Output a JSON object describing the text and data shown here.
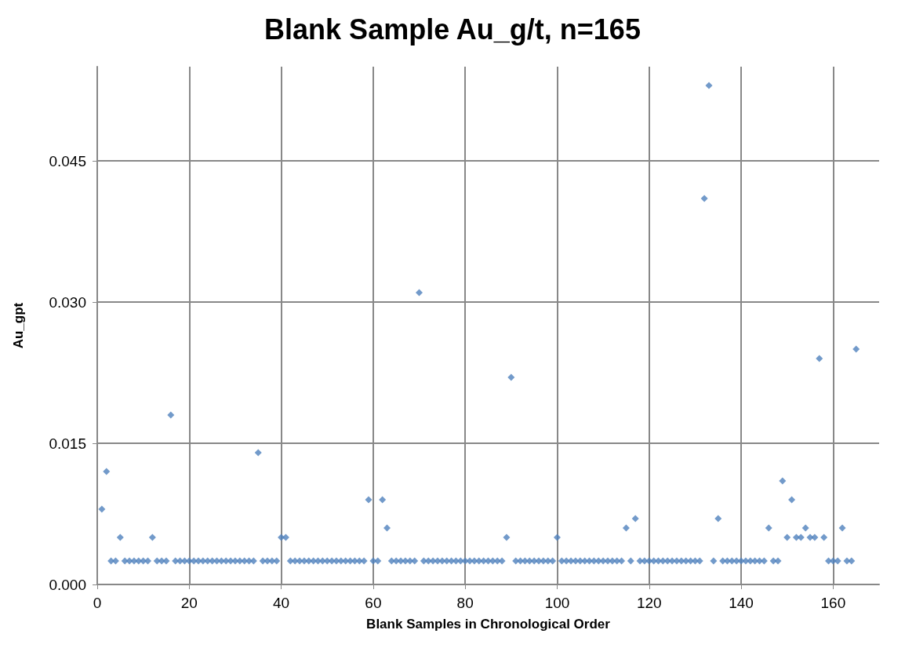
{
  "chart_data": {
    "type": "scatter",
    "title": "Blank Sample Au_g/t, n=165",
    "xlabel": "Blank Samples in Chronological Order",
    "ylabel": "Au_gpt",
    "x": [
      1,
      2,
      3,
      4,
      5,
      6,
      7,
      8,
      9,
      10,
      11,
      12,
      13,
      14,
      15,
      16,
      17,
      18,
      19,
      20,
      21,
      22,
      23,
      24,
      25,
      26,
      27,
      28,
      29,
      30,
      31,
      32,
      33,
      34,
      35,
      36,
      37,
      38,
      39,
      40,
      41,
      42,
      43,
      44,
      45,
      46,
      47,
      48,
      49,
      50,
      51,
      52,
      53,
      54,
      55,
      56,
      57,
      58,
      59,
      60,
      61,
      62,
      63,
      64,
      65,
      66,
      67,
      68,
      69,
      70,
      71,
      72,
      73,
      74,
      75,
      76,
      77,
      78,
      79,
      80,
      81,
      82,
      83,
      84,
      85,
      86,
      87,
      88,
      89,
      90,
      91,
      92,
      93,
      94,
      95,
      96,
      97,
      98,
      99,
      100,
      101,
      102,
      103,
      104,
      105,
      106,
      107,
      108,
      109,
      110,
      111,
      112,
      113,
      114,
      115,
      116,
      117,
      118,
      119,
      120,
      121,
      122,
      123,
      124,
      125,
      126,
      127,
      128,
      129,
      130,
      131,
      132,
      133,
      134,
      135,
      136,
      137,
      138,
      139,
      140,
      141,
      142,
      143,
      144,
      145,
      146,
      147,
      148,
      149,
      150,
      151,
      152,
      153,
      154,
      155,
      156,
      157,
      158,
      159,
      160,
      161,
      162,
      163,
      164,
      165
    ],
    "series": [
      {
        "color": "#4f81bd",
        "values": [
          0.008,
          0.012,
          0.0025,
          0.0025,
          0.005,
          0.0025,
          0.0025,
          0.0025,
          0.0025,
          0.0025,
          0.0025,
          0.005,
          0.0025,
          0.0025,
          0.0025,
          0.018,
          0.0025,
          0.0025,
          0.0025,
          0.0025,
          0.0025,
          0.0025,
          0.0025,
          0.0025,
          0.0025,
          0.0025,
          0.0025,
          0.0025,
          0.0025,
          0.0025,
          0.0025,
          0.0025,
          0.0025,
          0.0025,
          0.014,
          0.0025,
          0.0025,
          0.0025,
          0.0025,
          0.005,
          0.005,
          0.0025,
          0.0025,
          0.0025,
          0.0025,
          0.0025,
          0.0025,
          0.0025,
          0.0025,
          0.0025,
          0.0025,
          0.0025,
          0.0025,
          0.0025,
          0.0025,
          0.0025,
          0.0025,
          0.0025,
          0.009,
          0.0025,
          0.0025,
          0.009,
          0.006,
          0.0025,
          0.0025,
          0.0025,
          0.0025,
          0.0025,
          0.0025,
          0.031,
          0.0025,
          0.0025,
          0.0025,
          0.0025,
          0.0025,
          0.0025,
          0.0025,
          0.0025,
          0.0025,
          0.0025,
          0.0025,
          0.0025,
          0.0025,
          0.0025,
          0.0025,
          0.0025,
          0.0025,
          0.0025,
          0.005,
          0.022,
          0.0025,
          0.0025,
          0.0025,
          0.0025,
          0.0025,
          0.0025,
          0.0025,
          0.0025,
          0.0025,
          0.005,
          0.0025,
          0.0025,
          0.0025,
          0.0025,
          0.0025,
          0.0025,
          0.0025,
          0.0025,
          0.0025,
          0.0025,
          0.0025,
          0.0025,
          0.0025,
          0.0025,
          0.006,
          0.0025,
          0.007,
          0.0025,
          0.0025,
          0.0025,
          0.0025,
          0.0025,
          0.0025,
          0.0025,
          0.0025,
          0.0025,
          0.0025,
          0.0025,
          0.0025,
          0.0025,
          0.0025,
          0.041,
          0.053,
          0.0025,
          0.007,
          0.0025,
          0.0025,
          0.0025,
          0.0025,
          0.0025,
          0.0025,
          0.0025,
          0.0025,
          0.0025,
          0.0025,
          0.006,
          0.0025,
          0.0025,
          0.011,
          0.005,
          0.009,
          0.005,
          0.005,
          0.006,
          0.005,
          0.005,
          0.024,
          0.005,
          0.0025,
          0.0025,
          0.0025,
          0.006,
          0.0025,
          0.0025,
          0.025
        ]
      }
    ],
    "xlim": [
      0,
      170
    ],
    "xticks": [
      0,
      20,
      40,
      60,
      80,
      100,
      120,
      140,
      160
    ],
    "ylim": [
      0,
      0.055
    ],
    "yticks": [
      {
        "value": 0,
        "label": "0.000"
      },
      {
        "value": 0.015,
        "label": "0.015"
      },
      {
        "value": 0.03,
        "label": "0.030"
      },
      {
        "value": 0.045,
        "label": "0.045"
      }
    ],
    "grid": true,
    "marker": "diamond"
  }
}
